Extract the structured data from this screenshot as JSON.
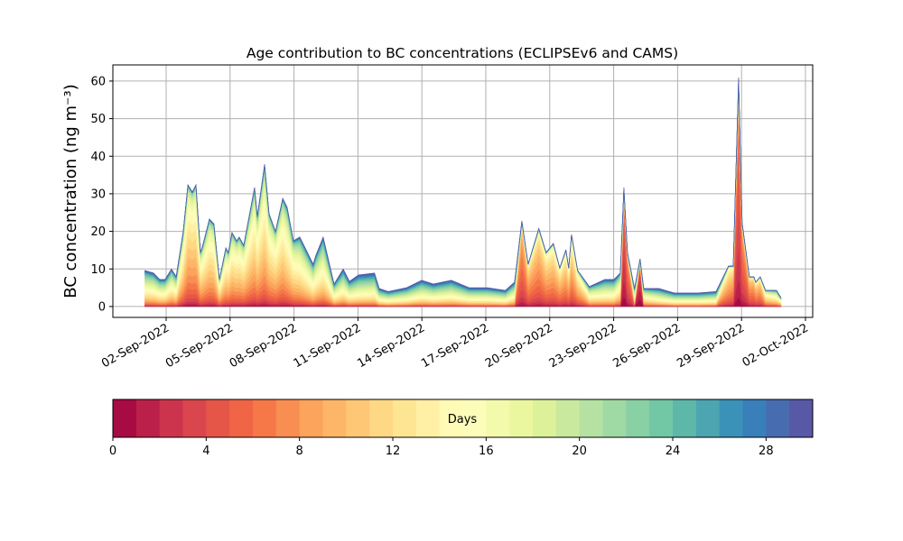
{
  "chart_data": {
    "type": "area",
    "stacked": true,
    "title": "Age contribution to BC concentrations (ECLIPSEv6 and CAMS)",
    "xlabel": "",
    "ylabel": "BC concentration (ng m⁻³)",
    "ylim": [
      -2.9,
      64.3
    ],
    "xlim_days_since_01_Sep_2022": [
      -1.5,
      31.34
    ],
    "grid": true,
    "yticks": [
      0,
      10,
      20,
      30,
      40,
      50,
      60
    ],
    "xticks": [
      {
        "day": 1,
        "label": "02-Sep-2022"
      },
      {
        "day": 4,
        "label": "05-Sep-2022"
      },
      {
        "day": 7,
        "label": "08-Sep-2022"
      },
      {
        "day": 10,
        "label": "11-Sep-2022"
      },
      {
        "day": 13,
        "label": "14-Sep-2022"
      },
      {
        "day": 16,
        "label": "17-Sep-2022"
      },
      {
        "day": 19,
        "label": "20-Sep-2022"
      },
      {
        "day": 22,
        "label": "23-Sep-2022"
      },
      {
        "day": 25,
        "label": "26-Sep-2022"
      },
      {
        "day": 28,
        "label": "29-Sep-2022"
      },
      {
        "day": 31,
        "label": "02-Oct-2022"
      }
    ],
    "total": {
      "x_days": [
        0,
        0.41,
        0.7,
        0.95,
        1.25,
        1.47,
        1.8,
        2.02,
        2.23,
        2.4,
        2.61,
        2.74,
        3.03,
        3.24,
        3.5,
        3.8,
        3.92,
        4.09,
        4.31,
        4.43,
        4.64,
        5.15,
        5.28,
        5.62,
        5.83,
        6.13,
        6.47,
        6.68,
        6.97,
        7.27,
        7.9,
        8.03,
        8.37,
        8.88,
        9.31,
        9.6,
        10.02,
        10.78,
        11.0,
        11.42,
        12.27,
        12.99,
        13.54,
        14.38,
        15.23,
        16.08,
        16.92,
        17.35,
        17.69,
        17.99,
        18.49,
        18.83,
        19.17,
        19.47,
        19.76,
        19.89,
        20.02,
        20.31,
        20.86,
        21.58,
        22.01,
        22.31,
        22.48,
        22.65,
        22.98,
        23.24,
        23.41,
        24.13,
        24.85,
        25.95,
        26.8,
        27.39,
        27.61,
        27.86,
        28.03,
        28.37,
        28.58,
        28.67,
        28.88,
        29.13,
        29.64,
        29.85
      ],
      "values": [
        9.6,
        8.9,
        7.2,
        7.2,
        10,
        8,
        20,
        32.4,
        30.5,
        32.4,
        14.4,
        16.8,
        23.3,
        22,
        7.2,
        15.6,
        14.4,
        19.7,
        17.5,
        18.5,
        16.3,
        31.7,
        24,
        37.9,
        24.7,
        20,
        28.8,
        26.4,
        17.5,
        18.5,
        11.3,
        13.7,
        18.5,
        6,
        10,
        6.7,
        8.4,
        8.9,
        4.8,
        4,
        5,
        7,
        6,
        7,
        5,
        5,
        4.3,
        6.5,
        22.8,
        11.3,
        20.8,
        14.4,
        16.8,
        10.3,
        15.1,
        10.3,
        19.2,
        9.6,
        5.3,
        7.2,
        7.2,
        8.9,
        31.7,
        14.4,
        4.8,
        12.7,
        4.8,
        4.8,
        3.6,
        3.6,
        4,
        10.8,
        10.8,
        61,
        22.3,
        7.9,
        7.9,
        6.5,
        7.9,
        4.3,
        4.3,
        2.4
      ],
      "mean_age_days": [
        16,
        16,
        16,
        16,
        15,
        15,
        12,
        11,
        11,
        11,
        12,
        12,
        12,
        12,
        12,
        12,
        12,
        12,
        12,
        12,
        12,
        12,
        12,
        12,
        12,
        12,
        12,
        13,
        13,
        14,
        15,
        15,
        15,
        16,
        17,
        17,
        18,
        18,
        18,
        18,
        18,
        18,
        18,
        18,
        18,
        18,
        18,
        17,
        6,
        8,
        8,
        9,
        9,
        9,
        9,
        9,
        9,
        10,
        15,
        17,
        17,
        14,
        3,
        5,
        15,
        2,
        15,
        18,
        18,
        18,
        18,
        9,
        8,
        4,
        5,
        7,
        7,
        8,
        8,
        12,
        14,
        14
      ]
    },
    "age_bins": {
      "count": 30,
      "start": 0,
      "step": 1,
      "unit": "days"
    },
    "colorbar": {
      "label": "Days",
      "ticks": [
        0,
        4,
        8,
        12,
        16,
        20,
        24,
        28
      ],
      "range": [
        0,
        30
      ],
      "colormap_stops": [
        "#9e0142",
        "#d53e4f",
        "#f46d43",
        "#fdae61",
        "#fee08b",
        "#ffffbf",
        "#e6f598",
        "#abdda4",
        "#66c2a5",
        "#3288bd",
        "#5e4fa2"
      ]
    }
  }
}
